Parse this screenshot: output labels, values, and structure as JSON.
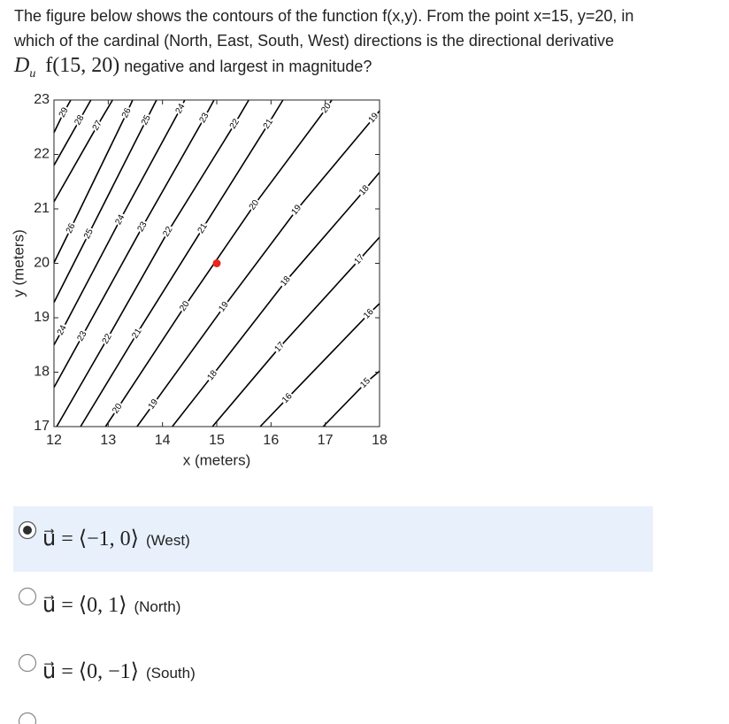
{
  "question": {
    "text": "The figure below shows the contours of the function f(x,y). From the point x=15, y=20, in which of the cardinal (North, East, South, West) directions is the directional derivative",
    "math": "D",
    "math_sub": "u⃗",
    "math_rest": "f(15, 20)",
    "text_after": "negative and largest in magnitude?"
  },
  "chart_data": {
    "type": "contour",
    "xlabel": "x (meters)",
    "ylabel": "y (meters)",
    "xlim": [
      12,
      18
    ],
    "ylim": [
      17,
      23
    ],
    "xticks": [
      12,
      13,
      14,
      15,
      16,
      17,
      18
    ],
    "yticks": [
      17,
      18,
      19,
      20,
      21,
      22,
      23
    ],
    "color": "#000000",
    "point": {
      "x": 15,
      "y": 20,
      "color": "#e8261f"
    },
    "contours": [
      {
        "level": 29,
        "x": [
          12.31,
          12.18,
          12.0
        ],
        "y": [
          23,
          22.77,
          22.4
        ]
      },
      {
        "level": 28,
        "x": [
          12.68,
          12.47,
          12.0
        ],
        "y": [
          23,
          22.63,
          21.8
        ]
      },
      {
        "level": 27,
        "x": [
          13.08,
          12.8,
          12.0
        ],
        "y": [
          23,
          22.53,
          21.13
        ]
      },
      {
        "level": 26,
        "x": [
          13.45,
          13.34,
          12.31,
          12.0
        ],
        "y": [
          23,
          22.76,
          20.64,
          20.01
        ]
      },
      {
        "level": 25,
        "x": [
          13.89,
          13.7,
          12.64,
          12.0
        ],
        "y": [
          23,
          22.63,
          20.54,
          19.28
        ]
      },
      {
        "level": 24,
        "x": [
          14.41,
          14.33,
          13.22,
          12.15,
          12.0
        ],
        "y": [
          23,
          22.84,
          20.8,
          18.77,
          18.5
        ]
      },
      {
        "level": 23,
        "x": [
          14.95,
          14.77,
          13.63,
          12.52,
          12.0
        ],
        "y": [
          23,
          22.67,
          20.67,
          18.66,
          17.72
        ]
      },
      {
        "level": 22,
        "x": [
          15.59,
          15.33,
          14.1,
          12.98,
          12.05
        ],
        "y": [
          23,
          22.56,
          20.58,
          18.61,
          17
        ]
      },
      {
        "level": 21,
        "x": [
          16.22,
          15.95,
          14.74,
          13.53,
          12.49
        ],
        "y": [
          23,
          22.56,
          20.64,
          18.71,
          17
        ]
      },
      {
        "level": 20,
        "x": [
          17.12,
          17.02,
          15.69,
          14.41,
          13.17,
          12.95
        ],
        "y": [
          23,
          22.85,
          21.07,
          19.21,
          17.33,
          17
        ]
      },
      {
        "level": 19,
        "x": [
          18,
          17.89,
          16.47,
          15.13,
          13.83,
          13.53
        ],
        "y": [
          22.8,
          22.67,
          20.98,
          19.2,
          17.41,
          17
        ]
      },
      {
        "level": 18,
        "x": [
          18,
          17.72,
          16.27,
          14.92,
          14.18
        ],
        "y": [
          21.67,
          21.34,
          19.67,
          17.94,
          17
        ]
      },
      {
        "level": 17,
        "x": [
          18,
          17.63,
          16.16,
          14.92
        ],
        "y": [
          20.48,
          20.07,
          18.46,
          17
        ]
      },
      {
        "level": 16,
        "x": [
          18,
          17.8,
          16.3,
          15.8
        ],
        "y": [
          19.26,
          19.07,
          17.52,
          17
        ]
      },
      {
        "level": 15,
        "x": [
          18,
          17.74,
          16.96
        ],
        "y": [
          18.02,
          17.8,
          17
        ]
      }
    ]
  },
  "options": [
    {
      "math": "u⃗ = ⟨−1, 0⟩",
      "label": "(West)",
      "selected": true
    },
    {
      "math": "u⃗ = ⟨0, 1⟩",
      "label": "(North)",
      "selected": false
    },
    {
      "math": "u⃗ = ⟨0, −1⟩",
      "label": "(South)",
      "selected": false
    }
  ]
}
